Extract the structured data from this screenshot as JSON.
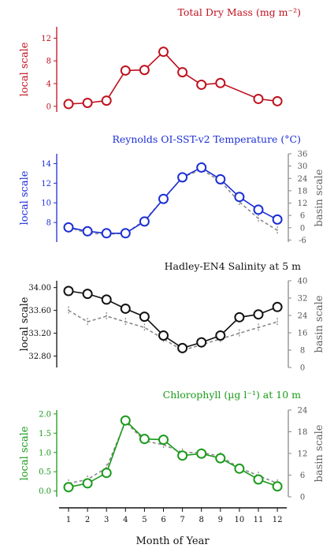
{
  "figure": {
    "xlabel": "Month of Year",
    "months": [
      "1",
      "2",
      "3",
      "4",
      "5",
      "6",
      "7",
      "8",
      "9",
      "10",
      "11",
      "12"
    ]
  },
  "colors": {
    "red": "#c0111f",
    "blue": "#1c2ed6",
    "black": "#111111",
    "green": "#1a9a1a",
    "basin": "#8a8a8a"
  },
  "chart_data": [
    {
      "type": "line",
      "title": "Total Dry Mass (mg m⁻²)",
      "ylabel_left": "local scale",
      "color_key": "red",
      "x": [
        1,
        2,
        3,
        4,
        5,
        6,
        7,
        8,
        9,
        10,
        11,
        12
      ],
      "local": {
        "values": [
          0.4,
          0.6,
          1.0,
          6.3,
          6.4,
          9.6,
          6.0,
          3.8,
          4.1,
          null,
          1.3,
          0.9
        ],
        "ylim": [
          -1,
          14
        ],
        "ticks": [
          "0",
          "4",
          "8",
          "12"
        ],
        "tick_values": [
          0,
          4,
          8,
          12
        ]
      }
    },
    {
      "type": "line",
      "title": "Reynolds OI-SST-v2 Temperature (°C)",
      "ylabel_left": "local scale",
      "ylabel_right": "basin scale",
      "color_key": "blue",
      "x": [
        1,
        2,
        3,
        4,
        5,
        6,
        7,
        8,
        9,
        10,
        11,
        12
      ],
      "local": {
        "values": [
          7.5,
          7.1,
          6.9,
          6.9,
          8.1,
          10.4,
          12.6,
          13.6,
          12.4,
          10.6,
          9.3,
          8.3
        ],
        "ylim": [
          6.0,
          15.0
        ],
        "ticks": [
          "8",
          "10",
          "12",
          "14"
        ],
        "tick_values": [
          8,
          10,
          12,
          14
        ]
      },
      "basin": {
        "values": [
          7.5,
          6.9,
          6.8,
          6.9,
          8.2,
          10.4,
          12.6,
          13.4,
          12.2,
          10.1,
          8.4,
          7.2
        ],
        "ylim": [
          -7,
          36
        ],
        "ticks": [
          "-6",
          "0",
          "6",
          "12",
          "18",
          "24",
          "30",
          "36"
        ],
        "tick_values": [
          -6,
          0,
          6,
          12,
          18,
          24,
          30,
          36
        ]
      }
    },
    {
      "type": "line",
      "title": "Hadley-EN4 Salinity at 5 m",
      "ylabel_left": "local scale",
      "ylabel_right": "basin scale",
      "color_key": "black",
      "x": [
        1,
        2,
        3,
        4,
        5,
        6,
        7,
        8,
        9,
        10,
        11,
        12
      ],
      "local": {
        "values": [
          33.94,
          33.89,
          33.79,
          33.63,
          33.49,
          33.16,
          32.94,
          33.04,
          33.16,
          33.48,
          33.53,
          33.66
        ],
        "ylim": [
          32.6,
          34.12
        ],
        "ticks": [
          "32.80",
          "33.20",
          "33.60",
          "34.00"
        ],
        "tick_values": [
          32.8,
          33.2,
          33.6,
          34.0
        ]
      },
      "basin": {
        "values": [
          33.6,
          33.4,
          33.5,
          33.4,
          33.3,
          33.1,
          32.9,
          33.0,
          33.1,
          33.2,
          33.3,
          33.4
        ],
        "ylim": [
          0,
          40
        ],
        "ticks": [
          "0",
          "8",
          "16",
          "24",
          "32",
          "40"
        ],
        "tick_values": [
          0,
          8,
          16,
          24,
          32,
          40
        ]
      }
    },
    {
      "type": "line",
      "title": "Chlorophyll (µg l⁻¹) at 10 m",
      "ylabel_left": "local scale",
      "ylabel_right": "basin scale",
      "color_key": "green",
      "x": [
        1,
        2,
        3,
        4,
        5,
        6,
        7,
        8,
        9,
        10,
        11,
        12
      ],
      "local": {
        "values": [
          0.1,
          0.2,
          0.47,
          1.83,
          1.35,
          1.33,
          0.92,
          0.97,
          0.85,
          0.58,
          0.3,
          0.12
        ],
        "ylim": [
          -0.15,
          2.1
        ],
        "ticks": [
          "0.0",
          "0.5",
          "1.0",
          "1.5",
          "2.0"
        ],
        "tick_values": [
          0,
          0.5,
          1.0,
          1.5,
          2.0
        ]
      },
      "basin": {
        "values": [
          0.2,
          0.3,
          0.6,
          1.8,
          1.3,
          1.2,
          1.0,
          1.0,
          0.9,
          0.6,
          0.4,
          0.2
        ],
        "ylim": [
          0,
          24
        ],
        "ticks": [
          "0",
          "6",
          "12",
          "18",
          "24"
        ],
        "tick_values": [
          0,
          6,
          12,
          18,
          24
        ]
      }
    }
  ]
}
